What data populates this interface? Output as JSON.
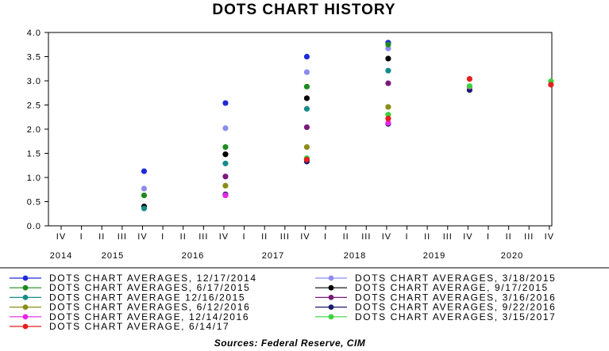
{
  "chart_data": {
    "type": "scatter",
    "title": "DOTS CHART HISTORY",
    "source": "Sources:  Federal Reserve, CIM",
    "quarter_labels": [
      "IV",
      "I",
      "II",
      "III",
      "IV",
      "I",
      "II",
      "III",
      "IV",
      "I",
      "II",
      "III",
      "IV",
      "I",
      "II",
      "III",
      "IV",
      "I",
      "II",
      "III",
      "IV",
      "I",
      "II",
      "III",
      "IV"
    ],
    "years": [
      "2014",
      "2015",
      "2016",
      "2017",
      "2018",
      "2019",
      "2020"
    ],
    "y_ticks": [
      "4.0",
      "3.5",
      "3.0",
      "2.5",
      "2.0",
      "1.5",
      "1.0",
      "0.5",
      "0.0"
    ],
    "ylim": [
      0,
      4
    ],
    "x_categories": [
      "2014 Q4",
      "2015 Q4",
      "2016 Q4",
      "2017 Q4",
      "2018 Q4",
      "2019 Q4",
      "2020 Q4"
    ],
    "grid": false,
    "legend_position": "bottom",
    "series": [
      {
        "name": "DOTS CHART AVERAGES, 12/17/2014",
        "color": "#1f2bd6",
        "values": [
          null,
          1.13,
          2.54,
          3.5,
          3.79,
          null,
          null
        ]
      },
      {
        "name": "DOTS CHART AVERAGES, 3/18/2015",
        "color": "#8c8cf0",
        "values": [
          null,
          0.77,
          2.02,
          3.18,
          3.67,
          null,
          null
        ]
      },
      {
        "name": "DOTS CHART AVERAGES, 6/17/2015",
        "color": "#1e8a1e",
        "values": [
          null,
          0.63,
          1.63,
          2.88,
          3.75,
          null,
          null
        ]
      },
      {
        "name": "DOTS CHART AVERAGE, 9/17/2015",
        "color": "#000000",
        "values": [
          null,
          0.4,
          1.48,
          2.64,
          3.46,
          null,
          null
        ]
      },
      {
        "name": "DOTS CHART AVERAGE 12/16/2015",
        "color": "#178a8a",
        "values": [
          null,
          0.36,
          1.29,
          2.42,
          3.21,
          null,
          null
        ]
      },
      {
        "name": "DOTS CHART AVERAGES, 3/16/2016",
        "color": "#7a1a7a",
        "values": [
          null,
          null,
          1.02,
          2.04,
          2.95,
          null,
          null
        ]
      },
      {
        "name": "DOTS CHART AVERAGES, 6/12/2016",
        "color": "#8c8c1a",
        "values": [
          null,
          null,
          0.83,
          1.63,
          2.46,
          null,
          null
        ]
      },
      {
        "name": "DOTS CHART AVERAGES, 9/22/2016",
        "color": "#1a1a6e",
        "values": [
          null,
          null,
          0.65,
          1.33,
          2.11,
          2.81,
          null
        ]
      },
      {
        "name": "DOTS CHART AVERAGE, 12/14/2016",
        "color": "#e626e6",
        "values": [
          null,
          null,
          0.63,
          1.38,
          2.13,
          2.88,
          null
        ]
      },
      {
        "name": "DOTS CHART AVERAGES, 3/15/2017",
        "color": "#3cd23c",
        "values": [
          null,
          null,
          null,
          1.4,
          2.3,
          2.89,
          2.99
        ]
      },
      {
        "name": "DOTS CHART AVERAGE, 6/14/17",
        "color": "#e61e1e",
        "values": [
          null,
          null,
          null,
          1.37,
          2.22,
          3.04,
          2.92
        ]
      }
    ]
  }
}
